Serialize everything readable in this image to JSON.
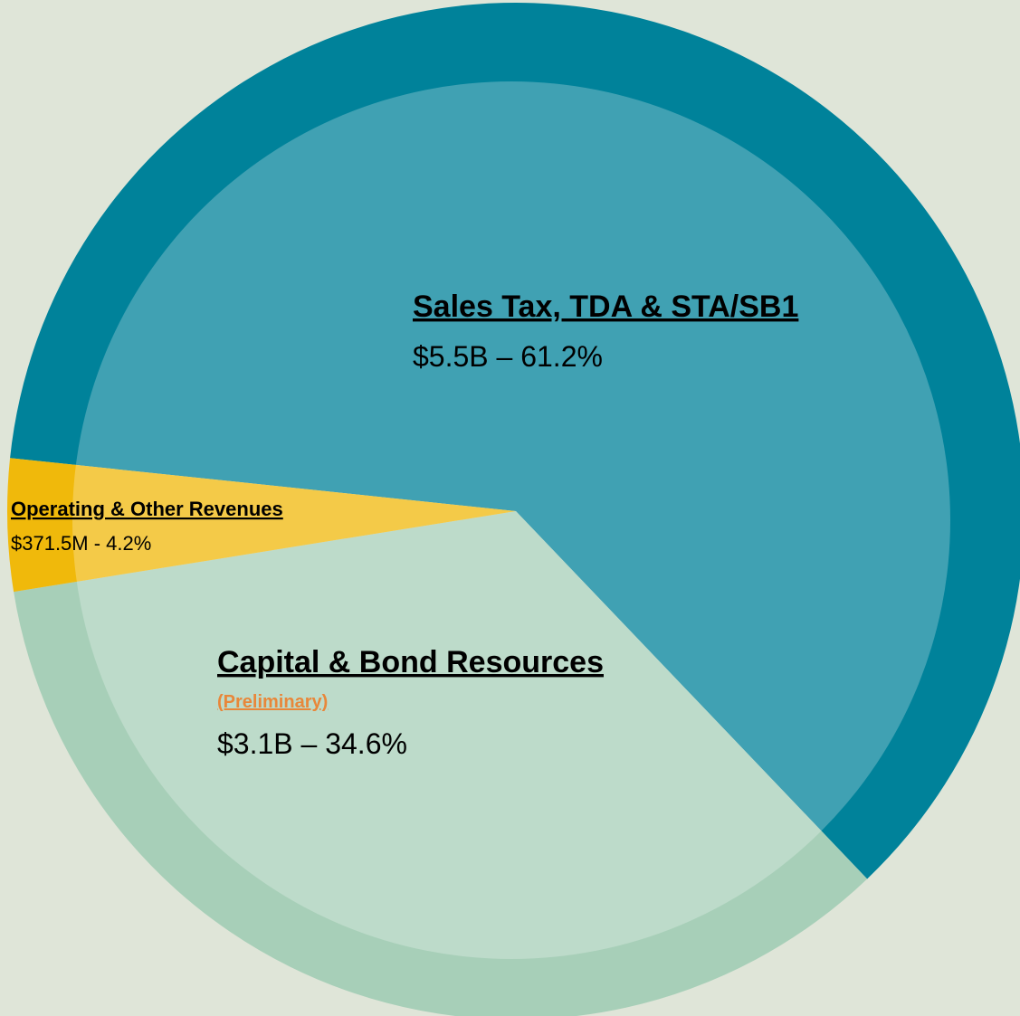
{
  "chart_data": {
    "type": "pie",
    "categories": [
      "Sales Tax, TDA & STA/SB1",
      "Capital & Bond Resources",
      "Operating & Other Revenues"
    ],
    "values": [
      61.2,
      34.6,
      4.2
    ],
    "value_labels": [
      "$5.5B – 61.2%",
      "$3.1B – 34.6%",
      "$371.5M - 4.2%"
    ],
    "colors": [
      "#00829a",
      "#a7cfb8",
      "#f0b90b"
    ],
    "annotation": "(Preliminary)"
  }
}
